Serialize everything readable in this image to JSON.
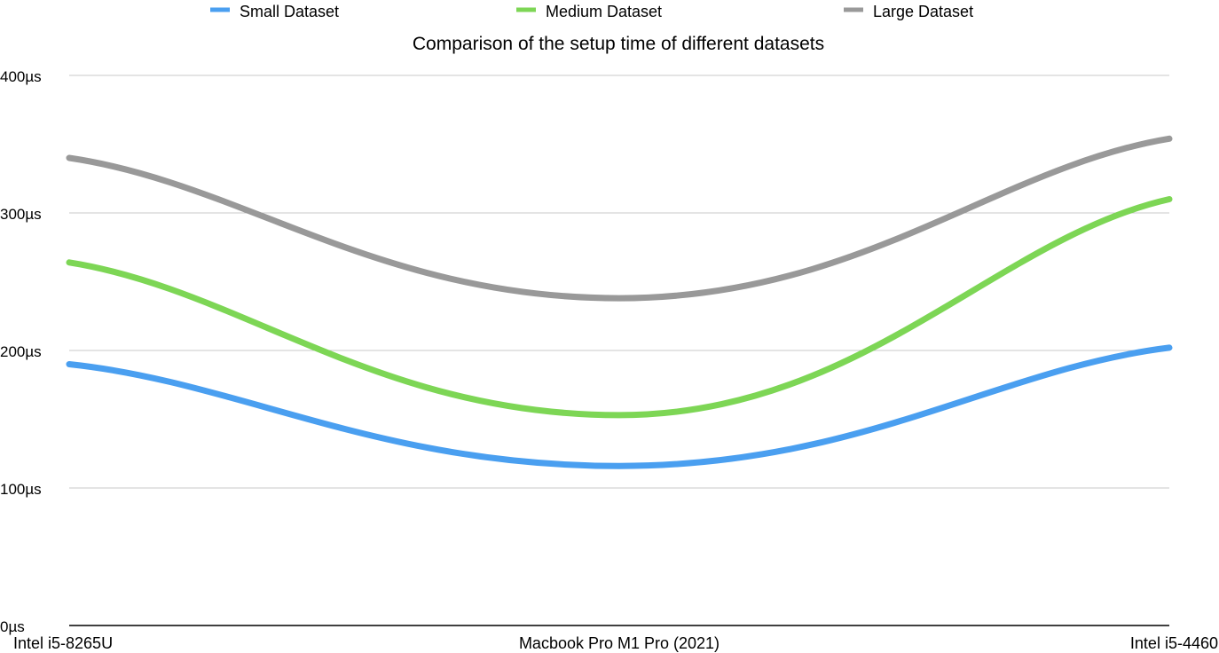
{
  "chart_data": {
    "type": "line",
    "title": "Comparison of the setup time of different datasets",
    "xlabel": "",
    "ylabel": "",
    "categories": [
      "Intel i5-8265U",
      "Macbook Pro M1 Pro (2021)",
      "Intel i5-4460"
    ],
    "series": [
      {
        "name": "Small Dataset",
        "color": "#4a9ff0",
        "values": [
          190,
          116,
          202
        ]
      },
      {
        "name": "Medium Dataset",
        "color": "#7dd655",
        "values": [
          264,
          153,
          310
        ]
      },
      {
        "name": "Large Dataset",
        "color": "#999999",
        "values": [
          340,
          238,
          354
        ]
      }
    ],
    "ylim": [
      0,
      400
    ],
    "yticks": [
      0,
      100,
      200,
      300,
      400
    ],
    "ytick_labels": [
      "0µs",
      "100µs",
      "200µs",
      "300µs",
      "400µs"
    ],
    "grid": true,
    "legend_position": "top",
    "smooth": true
  }
}
